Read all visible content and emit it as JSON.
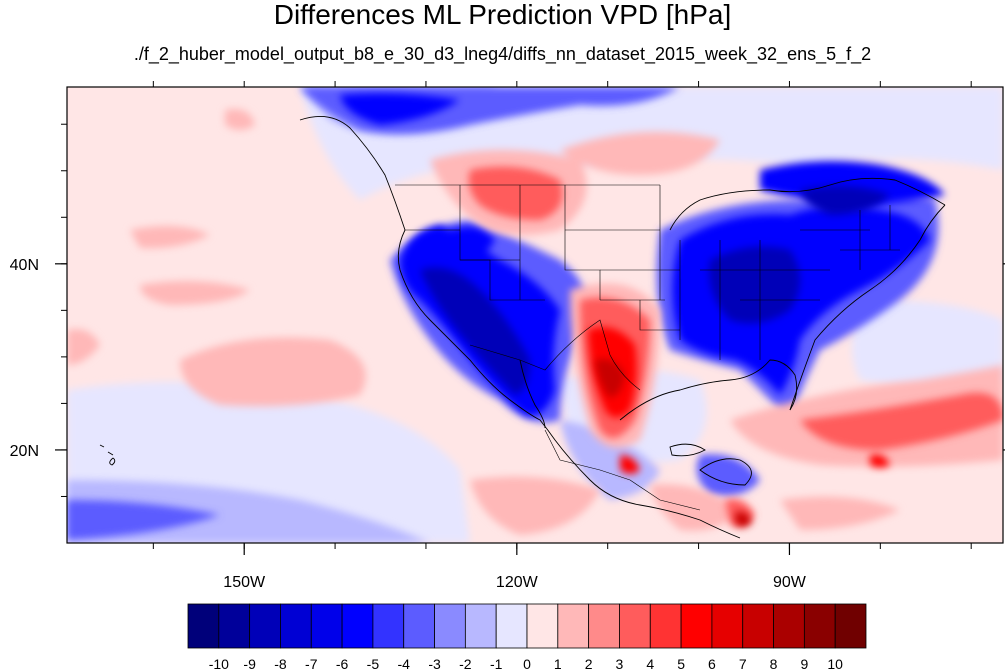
{
  "title": "Differences ML Prediction VPD [hPa]",
  "subtitle": "./f_2_huber_model_output_b8_e_30_d3_lneg4/diffs_nn_dataset_2015_week_32_ens_5_f_2",
  "map": {
    "projection": "cylindrical-equidistant",
    "lon_range": [
      -169.5,
      -66.5
    ],
    "lat_range": [
      10,
      59
    ],
    "lon_ticks": [
      {
        "value": -150,
        "label": "150W"
      },
      {
        "value": -120,
        "label": "120W"
      },
      {
        "value": -90,
        "label": "90W"
      }
    ],
    "lat_ticks": [
      {
        "value": 20,
        "label": "20N"
      },
      {
        "value": 40,
        "label": "40N"
      }
    ],
    "features": [
      "coastlines",
      "us-state-borders",
      "national-borders"
    ]
  },
  "colorbar": {
    "levels": [
      "-10",
      "-9",
      "-8",
      "-7",
      "-6",
      "-5",
      "-4",
      "-3",
      "-2",
      "-1",
      "0",
      "1",
      "2",
      "3",
      "4",
      "5",
      "6",
      "7",
      "8",
      "9",
      "10"
    ],
    "colors": [
      "#00007a",
      "#00009a",
      "#0000b8",
      "#0000d4",
      "#0000ea",
      "#0000ff",
      "#3333ff",
      "#5c5cff",
      "#8a8aff",
      "#b8b8ff",
      "#e6e6ff",
      "#ffe6e6",
      "#ffb8b8",
      "#ff8a8a",
      "#ff5c5c",
      "#ff3333",
      "#ff0000",
      "#e60000",
      "#c80000",
      "#aa0000",
      "#8a0000",
      "#700000"
    ]
  }
}
